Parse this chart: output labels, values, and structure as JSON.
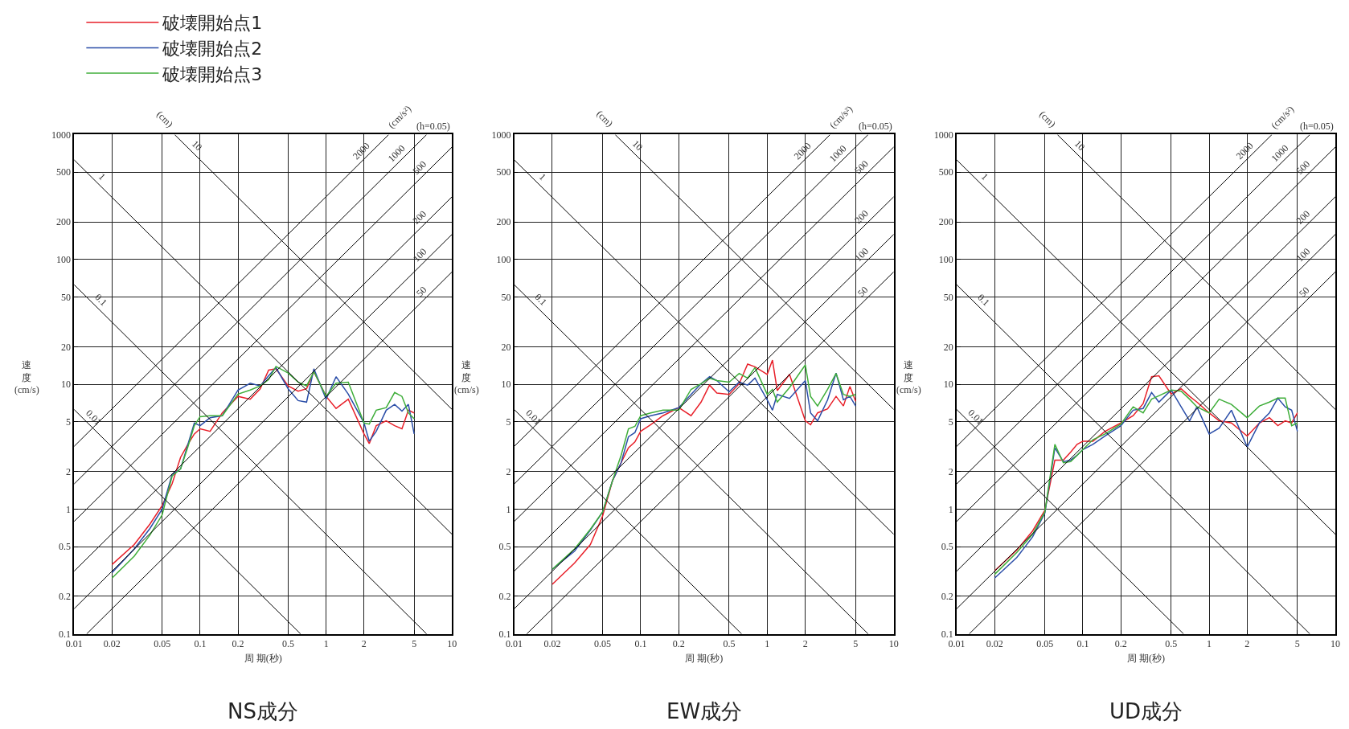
{
  "chart_data": [
    {
      "type": "line",
      "title": "NS成分",
      "xlabel": "周 期(秒)",
      "ylabel": "速度(cm/s)",
      "log": "xy",
      "grid": true,
      "legend": "top left",
      "xlim": [
        0.01,
        10
      ],
      "ylim": [
        0.1,
        1000
      ],
      "xticks": [
        0.01,
        0.02,
        0.05,
        0.1,
        0.2,
        0.5,
        1,
        2,
        5,
        10
      ],
      "yticks": [
        0.1,
        0.2,
        0.5,
        1,
        2,
        5,
        10,
        20,
        50,
        100,
        200,
        500,
        1000
      ],
      "annotations": [
        "(cm)",
        "(cm/s²)",
        "(h=0.05)"
      ],
      "x": [
        0.02,
        0.03,
        0.04,
        0.05,
        0.06,
        0.07,
        0.08,
        0.09,
        0.1,
        0.12,
        0.15,
        0.2,
        0.25,
        0.3,
        0.35,
        0.4,
        0.5,
        0.6,
        0.7,
        0.8,
        1.0,
        1.2,
        1.5,
        2,
        2.2,
        2.5,
        3,
        3.5,
        4,
        4.5,
        5
      ],
      "series": [
        {
          "name": "破壊開始点1",
          "color": "#e8202a",
          "values": [
            0.36,
            0.52,
            0.76,
            1.07,
            1.6,
            2.6,
            3.3,
            4.0,
            4.4,
            4.2,
            5.9,
            8.0,
            7.6,
            9.2,
            13,
            13.3,
            9.7,
            8.8,
            9.2,
            12.6,
            8.0,
            6.4,
            7.6,
            4.0,
            3.35,
            4.66,
            5.1,
            4.66,
            4.4,
            6.2,
            5.9
          ]
        },
        {
          "name": "破壊開始点2",
          "color": "#2b4ea8",
          "values": [
            0.31,
            0.48,
            0.7,
            1.0,
            1.9,
            2.1,
            3.3,
            4.9,
            4.66,
            5.4,
            5.6,
            9,
            10.2,
            9.7,
            11.7,
            13.6,
            9.2,
            7.4,
            7.2,
            13.3,
            7.6,
            11.5,
            8.35,
            4.9,
            3.5,
            4.2,
            6.2,
            6.9,
            6.1,
            6.9,
            4.0
          ]
        },
        {
          "name": "破壊開始点3",
          "color": "#3fae3a",
          "values": [
            0.28,
            0.42,
            0.62,
            0.9,
            1.84,
            2.1,
            3.15,
            4.66,
            5.5,
            5.6,
            5.6,
            8.35,
            9,
            9.7,
            10.9,
            13.9,
            12.3,
            10.4,
            9.7,
            12.6,
            8.0,
            10.2,
            10.4,
            4.9,
            4.8,
            6.2,
            6.5,
            8.6,
            8.0,
            5.9,
            5.3
          ]
        },
        {
          "name": "1",
          "color": "#000000",
          "x": [
            0.01,
            10
          ],
          "values": [
            628,
            0.628
          ]
        },
        {
          "name": "10",
          "color": "#000000",
          "x": [
            0.0628,
            10
          ],
          "values": [
            1000,
            6.28
          ]
        },
        {
          "name": "0.1",
          "color": "#000000",
          "x": [
            0.01,
            6.28
          ],
          "values": [
            62.8,
            0.1
          ]
        },
        {
          "name": "0.01",
          "color": "#000000",
          "x": [
            0.01,
            0.628
          ],
          "values": [
            6.28,
            0.1
          ]
        },
        {
          "name": "2000",
          "color": "#000000",
          "x": [
            0.01,
            3.14
          ],
          "values": [
            3.18,
            1000
          ]
        },
        {
          "name": "1000",
          "color": "#000000",
          "x": [
            0.01,
            6.28
          ],
          "values": [
            1.59,
            1000
          ]
        },
        {
          "name": "500",
          "color": "#000000",
          "x": [
            0.01,
            10
          ],
          "values": [
            0.796,
            796
          ]
        },
        {
          "name": "200",
          "color": "#000000",
          "x": [
            0.01,
            10
          ],
          "values": [
            0.318,
            318
          ]
        },
        {
          "name": "100",
          "color": "#000000",
          "x": [
            0.01,
            10
          ],
          "values": [
            0.159,
            159
          ]
        },
        {
          "name": "50",
          "color": "#000000",
          "x": [
            0.01257,
            10
          ],
          "values": [
            0.1,
            79.6
          ]
        }
      ]
    },
    {
      "type": "line",
      "title": "EW成分",
      "xlabel": "周 期(秒)",
      "ylabel": "速度(cm/s)",
      "log": "xy",
      "grid": true,
      "xlim": [
        0.01,
        10
      ],
      "ylim": [
        0.1,
        1000
      ],
      "xticks": [
        0.01,
        0.02,
        0.05,
        0.1,
        0.2,
        0.5,
        1,
        2,
        5,
        10
      ],
      "yticks": [
        0.1,
        0.2,
        0.5,
        1,
        2,
        5,
        10,
        20,
        50,
        100,
        200,
        500,
        1000
      ],
      "annotations": [
        "(cm)",
        "(cm/s²)",
        "(h=0.05)"
      ],
      "x": [
        0.02,
        0.03,
        0.04,
        0.05,
        0.06,
        0.07,
        0.08,
        0.09,
        0.1,
        0.12,
        0.15,
        0.2,
        0.25,
        0.3,
        0.35,
        0.4,
        0.5,
        0.6,
        0.7,
        0.8,
        1.0,
        1.1,
        1.2,
        1.5,
        2,
        2.2,
        2.5,
        3,
        3.5,
        4,
        4.5,
        5
      ],
      "series": [
        {
          "color": "#e8202a",
          "values": [
            0.25,
            0.37,
            0.52,
            0.88,
            1.7,
            2.35,
            3.1,
            3.45,
            4.2,
            4.75,
            5.6,
            6.5,
            5.6,
            7.2,
            9.85,
            8.5,
            8.3,
            10.1,
            14.5,
            13.8,
            12.0,
            15.6,
            8.9,
            12,
            5.1,
            4.75,
            5.9,
            6.35,
            8.0,
            6.7,
            9.6,
            7.3
          ]
        },
        {
          "color": "#2b4ea8",
          "values": [
            0.33,
            0.46,
            0.68,
            0.95,
            1.7,
            2.35,
            3.8,
            4.1,
            5.3,
            5.6,
            5.9,
            6.5,
            8.3,
            10.1,
            11.5,
            10.7,
            8.7,
            10.4,
            9.85,
            11.2,
            7.5,
            6.2,
            8.3,
            7.7,
            10.7,
            5.9,
            5.1,
            7.5,
            12.3,
            7.5,
            8.0,
            6.7
          ]
        },
        {
          "color": "#3fae3a",
          "values": [
            0.33,
            0.48,
            0.69,
            0.95,
            1.7,
            2.7,
            4.4,
            4.6,
            5.6,
            5.9,
            6.2,
            6.2,
            9.1,
            10.1,
            11.2,
            10.7,
            10.4,
            12.2,
            11.2,
            13.6,
            8.3,
            9.1,
            7.2,
            9.4,
            14.3,
            8.0,
            6.7,
            9.1,
            12.2,
            8.3,
            8.0,
            8.3
          ]
        },
        {
          "name": "1",
          "color": "#000000",
          "x": [
            0.01,
            10
          ],
          "values": [
            628,
            0.628
          ]
        },
        {
          "name": "10",
          "color": "#000000",
          "x": [
            0.0628,
            10
          ],
          "values": [
            1000,
            6.28
          ]
        },
        {
          "name": "0.1",
          "color": "#000000",
          "x": [
            0.01,
            6.28
          ],
          "values": [
            62.8,
            0.1
          ]
        },
        {
          "name": "0.01",
          "color": "#000000",
          "x": [
            0.01,
            0.628
          ],
          "values": [
            6.28,
            0.1
          ]
        },
        {
          "name": "2000",
          "color": "#000000",
          "x": [
            0.01,
            3.14
          ],
          "values": [
            3.18,
            1000
          ]
        },
        {
          "name": "1000",
          "color": "#000000",
          "x": [
            0.01,
            6.28
          ],
          "values": [
            1.59,
            1000
          ]
        },
        {
          "name": "500",
          "color": "#000000",
          "x": [
            0.01,
            10
          ],
          "values": [
            0.796,
            796
          ]
        },
        {
          "name": "200",
          "color": "#000000",
          "x": [
            0.01,
            10
          ],
          "values": [
            0.318,
            318
          ]
        },
        {
          "name": "100",
          "color": "#000000",
          "x": [
            0.01,
            10
          ],
          "values": [
            0.159,
            159
          ]
        },
        {
          "name": "50",
          "color": "#000000",
          "x": [
            0.01257,
            10
          ],
          "values": [
            0.1,
            79.6
          ]
        }
      ]
    },
    {
      "type": "line",
      "title": "UD成分",
      "xlabel": "周 期(秒)",
      "ylabel": "速度(cm/s)",
      "log": "xy",
      "grid": true,
      "xlim": [
        0.01,
        10
      ],
      "ylim": [
        0.1,
        1000
      ],
      "xticks": [
        0.01,
        0.02,
        0.05,
        0.1,
        0.2,
        0.5,
        1,
        2,
        5,
        10
      ],
      "yticks": [
        0.1,
        0.2,
        0.5,
        1,
        2,
        5,
        10,
        20,
        50,
        100,
        200,
        500,
        1000
      ],
      "annotations": [
        "(cm)",
        "(cm/s²)",
        "(h=0.05)"
      ],
      "x": [
        0.02,
        0.03,
        0.04,
        0.05,
        0.06,
        0.07,
        0.08,
        0.09,
        0.1,
        0.12,
        0.15,
        0.2,
        0.25,
        0.3,
        0.35,
        0.4,
        0.5,
        0.6,
        0.7,
        0.8,
        1.0,
        1.2,
        1.5,
        2,
        2.5,
        3,
        3.5,
        4,
        4.5,
        5
      ],
      "series": [
        {
          "color": "#e8202a",
          "values": [
            0.32,
            0.47,
            0.67,
            0.98,
            2.47,
            2.47,
            2.86,
            3.3,
            3.5,
            3.5,
            4.2,
            4.9,
            5.6,
            7.0,
            11.5,
            11.7,
            8.35,
            9.2,
            8.0,
            7.2,
            5.9,
            5.1,
            4.9,
            3.85,
            4.9,
            5.4,
            4.66,
            5.1,
            4.9,
            5.9
          ]
        },
        {
          "color": "#2b4ea8",
          "values": [
            0.28,
            0.41,
            0.6,
            0.93,
            3.1,
            2.4,
            2.47,
            2.7,
            3.0,
            3.3,
            3.85,
            4.66,
            6.2,
            6.4,
            8.6,
            7.2,
            9.0,
            6.6,
            5.1,
            6.6,
            4.0,
            4.45,
            6.2,
            3.15,
            4.9,
            5.9,
            7.75,
            6.6,
            6.2,
            4.2
          ]
        },
        {
          "color": "#3fae3a",
          "values": [
            0.3,
            0.45,
            0.63,
            0.95,
            3.3,
            2.35,
            2.4,
            2.7,
            3.0,
            3.6,
            4.0,
            4.8,
            6.6,
            5.9,
            7.6,
            8.1,
            9.0,
            8.8,
            7.6,
            6.6,
            5.9,
            7.6,
            6.9,
            5.4,
            6.7,
            7.2,
            7.75,
            7.75,
            4.66,
            4.9
          ]
        },
        {
          "name": "1",
          "color": "#000000",
          "x": [
            0.01,
            10
          ],
          "values": [
            628,
            0.628
          ]
        },
        {
          "name": "10",
          "color": "#000000",
          "x": [
            0.0628,
            10
          ],
          "values": [
            1000,
            6.28
          ]
        },
        {
          "name": "0.1",
          "color": "#000000",
          "x": [
            0.01,
            6.28
          ],
          "values": [
            62.8,
            0.1
          ]
        },
        {
          "name": "0.01",
          "color": "#000000",
          "x": [
            0.01,
            0.628
          ],
          "values": [
            6.28,
            0.1
          ]
        },
        {
          "name": "2000",
          "color": "#000000",
          "x": [
            0.01,
            3.14
          ],
          "values": [
            3.18,
            1000
          ]
        },
        {
          "name": "1000",
          "color": "#000000",
          "x": [
            0.01,
            6.28
          ],
          "values": [
            1.59,
            1000
          ]
        },
        {
          "name": "500",
          "color": "#000000",
          "x": [
            0.01,
            10
          ],
          "values": [
            0.796,
            796
          ]
        },
        {
          "name": "200",
          "color": "#000000",
          "x": [
            0.01,
            10
          ],
          "values": [
            0.318,
            318
          ]
        },
        {
          "name": "100",
          "color": "#000000",
          "x": [
            0.01,
            10
          ],
          "values": [
            0.159,
            159
          ]
        },
        {
          "name": "50",
          "color": "#000000",
          "x": [
            0.01257,
            10
          ],
          "values": [
            0.1,
            79.6
          ]
        }
      ]
    }
  ]
}
